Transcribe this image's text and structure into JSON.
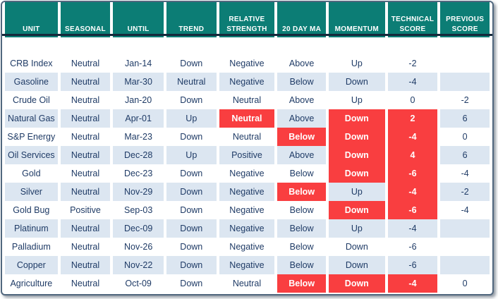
{
  "table": {
    "columns": [
      {
        "key": "unit",
        "label": "UNIT"
      },
      {
        "key": "seasonal",
        "label": "SEASONAL"
      },
      {
        "key": "until",
        "label": "UNTIL"
      },
      {
        "key": "trend",
        "label": "TREND"
      },
      {
        "key": "relative_strength",
        "label": "RELATIVE\nSTRENGTH"
      },
      {
        "key": "ma20",
        "label": "20 DAY MA"
      },
      {
        "key": "momentum",
        "label": "MOMENTUM"
      },
      {
        "key": "technical_score",
        "label": "TECHNICAL\nSCORE"
      },
      {
        "key": "previous_score",
        "label": "PREVIOUS\nSCORE"
      }
    ],
    "rows": [
      {
        "unit": "CRB Index",
        "seasonal": "Neutral",
        "until": "Jan-14",
        "trend": "Down",
        "relative_strength": "Negative",
        "ma20": "Above",
        "momentum": "Up",
        "technical_score": "-2",
        "previous_score": "",
        "highlights": []
      },
      {
        "unit": "Gasoline",
        "seasonal": "Neutral",
        "until": "Mar-30",
        "trend": "Neutral",
        "relative_strength": "Negative",
        "ma20": "Below",
        "momentum": "Down",
        "technical_score": "-4",
        "previous_score": "",
        "highlights": []
      },
      {
        "unit": "Crude Oil",
        "seasonal": "Neutral",
        "until": "Jan-20",
        "trend": "Down",
        "relative_strength": "Neutral",
        "ma20": "Above",
        "momentum": "Up",
        "technical_score": "0",
        "previous_score": "-2",
        "highlights": []
      },
      {
        "unit": "Natural Gas",
        "seasonal": "Neutral",
        "until": "Apr-01",
        "trend": "Up",
        "relative_strength": "Neutral",
        "ma20": "Above",
        "momentum": "Down",
        "technical_score": "2",
        "previous_score": "6",
        "highlights": [
          "relative_strength",
          "momentum",
          "technical_score"
        ]
      },
      {
        "unit": "S&P Energy",
        "seasonal": "Neutral",
        "until": "Mar-23",
        "trend": "Down",
        "relative_strength": "Neutral",
        "ma20": "Below",
        "momentum": "Down",
        "technical_score": "-4",
        "previous_score": "0",
        "highlights": [
          "ma20",
          "momentum",
          "technical_score"
        ]
      },
      {
        "unit": "Oil Services",
        "seasonal": "Neutral",
        "until": "Dec-28",
        "trend": "Up",
        "relative_strength": "Positive",
        "ma20": "Above",
        "momentum": "Down",
        "technical_score": "4",
        "previous_score": "6",
        "highlights": [
          "momentum",
          "technical_score"
        ]
      },
      {
        "unit": "Gold",
        "seasonal": "Neutral",
        "until": "Dec-23",
        "trend": "Down",
        "relative_strength": "Negative",
        "ma20": "Below",
        "momentum": "Down",
        "technical_score": "-6",
        "previous_score": "-4",
        "highlights": [
          "momentum",
          "technical_score"
        ]
      },
      {
        "unit": "Silver",
        "seasonal": "Neutral",
        "until": "Nov-29",
        "trend": "Down",
        "relative_strength": "Negative",
        "ma20": "Below",
        "momentum": "Up",
        "technical_score": "-4",
        "previous_score": "-2",
        "highlights": [
          "ma20",
          "technical_score"
        ]
      },
      {
        "unit": "Gold Bug",
        "seasonal": "Positive",
        "until": "Sep-03",
        "trend": "Down",
        "relative_strength": "Negative",
        "ma20": "Below",
        "momentum": "Down",
        "technical_score": "-6",
        "previous_score": "-4",
        "highlights": [
          "momentum",
          "technical_score"
        ]
      },
      {
        "unit": "Platinum",
        "seasonal": "Neutral",
        "until": "Dec-09",
        "trend": "Down",
        "relative_strength": "Negative",
        "ma20": "Below",
        "momentum": "Up",
        "technical_score": "-4",
        "previous_score": "",
        "highlights": []
      },
      {
        "unit": "Palladium",
        "seasonal": "Neutral",
        "until": "Nov-26",
        "trend": "Down",
        "relative_strength": "Negative",
        "ma20": "Below",
        "momentum": "Down",
        "technical_score": "-6",
        "previous_score": "",
        "highlights": []
      },
      {
        "unit": "Copper",
        "seasonal": "Neutral",
        "until": "Nov-22",
        "trend": "Down",
        "relative_strength": "Negative",
        "ma20": "Below",
        "momentum": "Down",
        "technical_score": "-6",
        "previous_score": "",
        "highlights": []
      },
      {
        "unit": "Agriculture",
        "seasonal": "Neutral",
        "until": "Oct-09",
        "trend": "Down",
        "relative_strength": "Neutral",
        "ma20": "Below",
        "momentum": "Down",
        "technical_score": "-4",
        "previous_score": "0",
        "highlights": [
          "ma20",
          "momentum",
          "technical_score"
        ]
      }
    ]
  },
  "colors": {
    "header_bg": "#0c7d75",
    "divider": "#15293b",
    "text": "#1f3b66",
    "alt_row_bg": "#dce6f1",
    "highlight_bg": "#f93e40",
    "highlight_text": "#ffffff"
  }
}
